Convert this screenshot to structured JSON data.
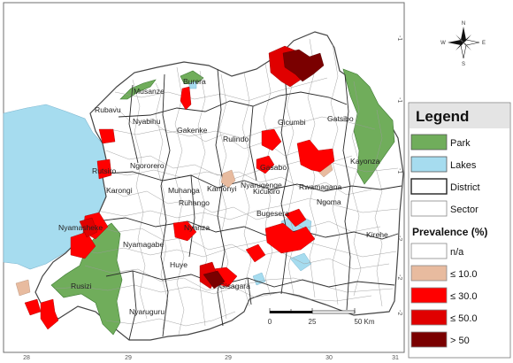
{
  "map": {
    "districts": [
      {
        "name": "Musanze"
      },
      {
        "name": "Burera"
      },
      {
        "name": "Rubavu"
      },
      {
        "name": "Nyabihu"
      },
      {
        "name": "Gakenke"
      },
      {
        "name": "Gicumbi"
      },
      {
        "name": "Gatsibo"
      },
      {
        "name": "Rulindo"
      },
      {
        "name": "Rutsiro"
      },
      {
        "name": "Ngororero"
      },
      {
        "name": "Gasabo"
      },
      {
        "name": "Kayonza"
      },
      {
        "name": "Kamonyi"
      },
      {
        "name": "Muhanga"
      },
      {
        "name": "Nyarugenge"
      },
      {
        "name": "Kicukiro"
      },
      {
        "name": "Rwamagana"
      },
      {
        "name": "Karongi"
      },
      {
        "name": "Ruhango"
      },
      {
        "name": "Ngoma"
      },
      {
        "name": "Bugesera"
      },
      {
        "name": "Kirehe"
      },
      {
        "name": "Nyamasheke"
      },
      {
        "name": "Nyanza"
      },
      {
        "name": "Nyamagabe"
      },
      {
        "name": "Huye"
      },
      {
        "name": "Rusizi"
      },
      {
        "name": "Gisagara"
      },
      {
        "name": "Nyaruguru"
      }
    ],
    "longitude_ticks": [
      "28",
      "29",
      "29",
      "30",
      "31"
    ],
    "latitude_ticks": [
      "-1",
      "-1",
      "-1",
      "-2",
      "-2",
      "-2"
    ],
    "scale_bar": {
      "labels": [
        "0",
        "25",
        "50 Km"
      ]
    },
    "north_arrow": {
      "N": "N",
      "E": "E",
      "S": "S",
      "W": "W"
    }
  },
  "legend": {
    "title": "Legend",
    "items": [
      {
        "label": "Park",
        "color": "#70ad5b"
      },
      {
        "label": "Lakes",
        "color": "#a6dcef"
      },
      {
        "label": "District",
        "color": "#ffffff"
      },
      {
        "label": "Sector",
        "color": "#ffffff"
      }
    ],
    "prevalence_title": "Prevalence (%)",
    "classes": [
      {
        "label": "n/a",
        "color": "#ffffff"
      },
      {
        "label": "≤ 10.0",
        "color": "#e8bb9f"
      },
      {
        "label": "≤ 30.0",
        "color": "#ff0000"
      },
      {
        "label": "≤ 50.0",
        "color": "#e00000"
      },
      {
        "label": "> 50",
        "color": "#7a0000"
      }
    ]
  }
}
